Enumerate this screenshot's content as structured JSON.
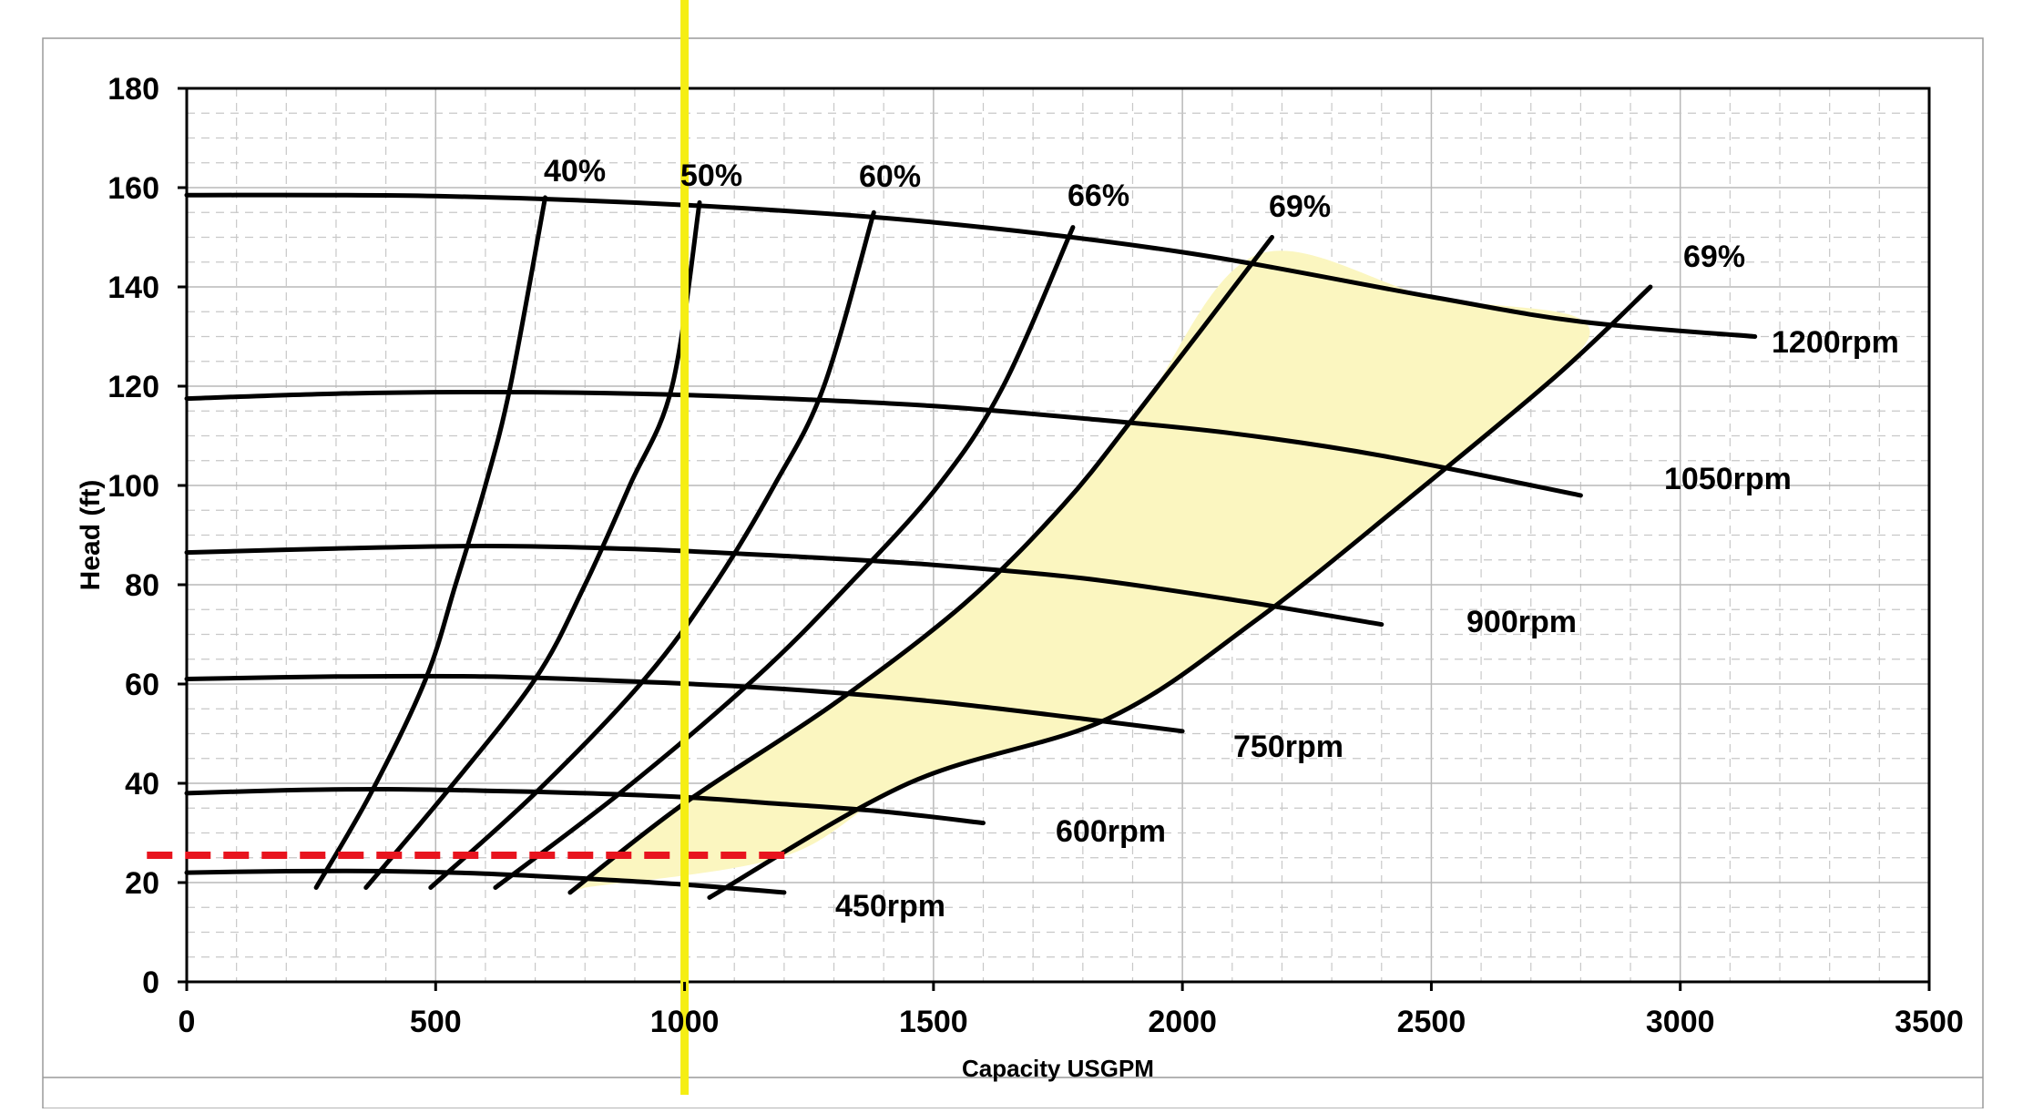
{
  "colors": {
    "background": "#ffffff",
    "plot_border": "#000000",
    "grid_major": "#b8b8b8",
    "grid_minor": "#c8c8c8",
    "curve": "#000000",
    "operating_region": "#fbf6c0",
    "vertical_marker": "#f5ee14",
    "horizontal_marker": "#e8141e"
  },
  "chart_data": {
    "type": "line",
    "title": "",
    "xlabel": "Capacity USGPM",
    "ylabel": "Head (ft)",
    "xlim": [
      0,
      3500
    ],
    "ylim": [
      0,
      180
    ],
    "x_ticks": [
      0,
      500,
      1000,
      1500,
      2000,
      2500,
      3000,
      3500
    ],
    "y_ticks": [
      0,
      20,
      40,
      60,
      80,
      100,
      120,
      140,
      160,
      180
    ],
    "x_tick_labels": [
      "0",
      "500",
      "1000",
      "1500",
      "2000",
      "2500",
      "3000",
      "3500"
    ],
    "y_tick_labels": [
      "0",
      "20",
      "40",
      "60",
      "80",
      "100",
      "120",
      "140",
      "160",
      "180"
    ],
    "grid": true,
    "legend": "none",
    "speed_curves": [
      {
        "label": "1200rpm",
        "x": [
          0,
          500,
          1000,
          1500,
          2000,
          2500,
          2800,
          3150
        ],
        "y": [
          158.5,
          158.3,
          156.5,
          153,
          147,
          138,
          133,
          130
        ]
      },
      {
        "label": "1050rpm",
        "x": [
          0,
          300,
          600,
          900,
          1200,
          1500,
          1800,
          2100,
          2400,
          2800
        ],
        "y": [
          117.5,
          118.5,
          118.8,
          118.5,
          117.5,
          116,
          113.5,
          110.5,
          106,
          98
        ]
      },
      {
        "label": "900rpm",
        "x": [
          0,
          300,
          600,
          900,
          1200,
          1500,
          1800,
          2100,
          2400
        ],
        "y": [
          86.5,
          87.3,
          87.8,
          87.2,
          85.8,
          84,
          81.3,
          77,
          72
        ]
      },
      {
        "label": "750rpm",
        "x": [
          0,
          300,
          600,
          900,
          1200,
          1500,
          1800,
          2000
        ],
        "y": [
          61,
          61.5,
          61.5,
          60.5,
          59,
          56.5,
          53,
          50.5
        ]
      },
      {
        "label": "600rpm",
        "x": [
          0,
          200,
          400,
          600,
          800,
          1000,
          1200,
          1400,
          1600
        ],
        "y": [
          38,
          38.6,
          38.8,
          38.5,
          38,
          37.2,
          35.8,
          34.3,
          32
        ]
      },
      {
        "label": "450rpm",
        "x": [
          0,
          200,
          400,
          600,
          800,
          1000,
          1200
        ],
        "y": [
          22,
          22.3,
          22.3,
          21.8,
          20.8,
          19.6,
          18
        ]
      }
    ],
    "efficiency_curves": [
      {
        "label": "40%",
        "x": [
          260,
          370,
          480,
          540,
          600,
          650,
          720
        ],
        "y": [
          19,
          38,
          61,
          80,
          100,
          120,
          158
        ]
      },
      {
        "label": "50%",
        "x": [
          360,
          520,
          700,
          800,
          890,
          975,
          1030
        ],
        "y": [
          19,
          38,
          61,
          80,
          100,
          120,
          157
        ]
      },
      {
        "label": "60%",
        "x": [
          490,
          700,
          920,
          1060,
          1180,
          1280,
          1380
        ],
        "y": [
          19,
          38,
          61,
          80,
          100,
          120,
          155
        ]
      },
      {
        "label": "66%",
        "x": [
          620,
          870,
          1140,
          1330,
          1510,
          1640,
          1780
        ],
        "y": [
          19,
          38,
          61,
          80,
          100,
          120,
          152
        ]
      },
      {
        "label": "69%",
        "x": [
          770,
          1000,
          1300,
          1560,
          1760,
          1920,
          2180
        ],
        "y": [
          18,
          36,
          56,
          76,
          96,
          116,
          150
        ]
      },
      {
        "label": "69%",
        "x": [
          1050,
          1450,
          1850,
          2150,
          2450,
          2750,
          2940
        ],
        "y": [
          17,
          40,
          53,
          73,
          97,
          122,
          140
        ]
      }
    ],
    "operating_region": {
      "label": "",
      "x": [
        770,
        1000,
        1300,
        1560,
        1760,
        1920,
        2150,
        2500,
        2800,
        2750,
        2450,
        2150,
        1850,
        1450,
        1200,
        800
      ],
      "y": [
        18,
        36,
        56,
        76,
        96,
        116,
        146.5,
        138,
        133.5,
        122,
        97,
        73,
        53,
        40,
        25.3,
        19
      ]
    },
    "marker_vertical": {
      "x": 1000
    },
    "marker_horizontal": {
      "y": 25.5,
      "x": [
        -80,
        1210
      ]
    }
  }
}
